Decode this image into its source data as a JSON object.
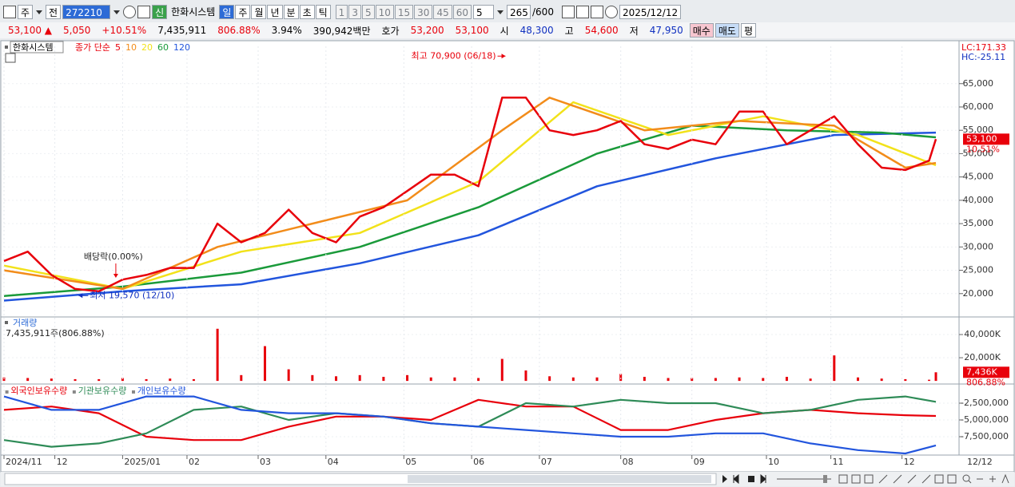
{
  "toolbar": {
    "period": "주",
    "mode": "전",
    "code": "272210",
    "new_badge": "신",
    "name": "한화시스템",
    "intervals": [
      "일",
      "주",
      "월",
      "년",
      "분",
      "초",
      "틱"
    ],
    "minutes": [
      "1",
      "3",
      "5",
      "10",
      "15",
      "30",
      "45",
      "60"
    ],
    "unit": "5",
    "count": "265",
    "max": "/600",
    "date": "2025/12/12"
  },
  "quote": {
    "cells": [
      {
        "text": "53,100 ▲",
        "color": "#e8000b"
      },
      {
        "text": "5,050",
        "color": "#e8000b"
      },
      {
        "text": "+10.51%",
        "color": "#e8000b"
      },
      {
        "text": "7,435,911",
        "color": "#000000"
      },
      {
        "text": "806.88%",
        "color": "#e8000b"
      },
      {
        "text": "3.94%",
        "color": "#000000"
      },
      {
        "text": "390,942백만",
        "color": "#000000"
      },
      {
        "text": "호가",
        "color": "#000000"
      },
      {
        "text": "53,200",
        "color": "#e8000b"
      },
      {
        "text": "53,100",
        "color": "#e8000b"
      },
      {
        "text": "시",
        "color": "#000000"
      },
      {
        "text": "48,300",
        "color": "#1030c0"
      },
      {
        "text": "고",
        "color": "#000000"
      },
      {
        "text": "54,600",
        "color": "#e8000b"
      },
      {
        "text": "저",
        "color": "#000000"
      },
      {
        "text": "47,950",
        "color": "#1030c0"
      }
    ],
    "buttons": [
      {
        "text": "매수",
        "color": "#f7c6d0"
      },
      {
        "text": "매도",
        "color": "#c6dcf7"
      },
      {
        "text": "평",
        "color": "#ffffff"
      }
    ]
  },
  "chart_data": [
    {
      "type": "line",
      "title": "한화시스템",
      "legend_prefix": "종가 단순",
      "corner_labels": [
        {
          "text": "LC:171.33",
          "color": "#e8000b"
        },
        {
          "text": "HC:-25.11",
          "color": "#1030c0"
        }
      ],
      "xlim": [
        0,
        275
      ],
      "ylim": [
        15000,
        73000
      ],
      "yticks": [
        {
          "value": 20000,
          "label": "20,000"
        },
        {
          "value": 25000,
          "label": "25,000"
        },
        {
          "value": 30000,
          "label": "30,000"
        },
        {
          "value": 35000,
          "label": "35,000"
        },
        {
          "value": 40000,
          "label": "40,000"
        },
        {
          "value": 45000,
          "label": "45,000"
        },
        {
          "value": 50000,
          "label": "50,000"
        },
        {
          "value": 55000,
          "label": "55,000"
        },
        {
          "value": 60000,
          "label": "60,000"
        },
        {
          "value": 65000,
          "label": "65,000"
        }
      ],
      "series": [
        {
          "name": "120",
          "color": "#2255dd",
          "x": [
            0,
            35,
            70,
            105,
            140,
            175,
            210,
            245,
            275
          ],
          "values": [
            18500,
            20500,
            22000,
            26500,
            32500,
            43000,
            49000,
            54000,
            54500
          ]
        },
        {
          "name": "60",
          "color": "#1a9a3a",
          "x": [
            0,
            35,
            70,
            105,
            140,
            175,
            203,
            231,
            259,
            275
          ],
          "values": [
            19500,
            21500,
            24500,
            30000,
            38500,
            50000,
            56000,
            55000,
            54500,
            53500
          ]
        },
        {
          "name": "20",
          "color": "#f2e21a",
          "x": [
            0,
            35,
            70,
            105,
            140,
            168,
            196,
            224,
            252,
            275
          ],
          "values": [
            26000,
            21000,
            29000,
            33000,
            44000,
            61000,
            54000,
            58000,
            54000,
            47500
          ]
        },
        {
          "name": "10",
          "color": "#f28c1a",
          "x": [
            0,
            35,
            63,
            91,
            119,
            147,
            161,
            189,
            217,
            245,
            266,
            275
          ],
          "values": [
            25000,
            21000,
            30000,
            35000,
            40000,
            55000,
            62000,
            55000,
            57000,
            56000,
            47000,
            48000
          ]
        },
        {
          "name": "5",
          "color": "#e8000b",
          "x": [
            0,
            7,
            14,
            21,
            28,
            35,
            42,
            49,
            56,
            63,
            70,
            77,
            84,
            91,
            98,
            105,
            112,
            119,
            126,
            133,
            140,
            147,
            154,
            161,
            168,
            175,
            182,
            189,
            196,
            203,
            210,
            217,
            224,
            231,
            238,
            245,
            252,
            259,
            266,
            273,
            275
          ],
          "values": [
            27000,
            29000,
            24000,
            21000,
            20500,
            23000,
            24000,
            25500,
            25500,
            35000,
            31000,
            33000,
            38000,
            33000,
            31000,
            36500,
            38500,
            42000,
            45500,
            45500,
            43000,
            62000,
            62000,
            55000,
            54000,
            55000,
            57000,
            52000,
            51000,
            53000,
            52000,
            59000,
            59000,
            52000,
            55000,
            58000,
            52000,
            47000,
            46500,
            48500,
            53100
          ]
        }
      ],
      "last": {
        "value": 53100,
        "label": "53,100"
      },
      "last_change": "10.51%",
      "annotations": [
        {
          "text": "최고 70,900 (06/18)",
          "x": 148,
          "value": 70900
        },
        {
          "text": "배당락(0.00%)",
          "x": 33
        },
        {
          "text": "최저 19,570 (12/10)",
          "x": 22,
          "value": 19570
        }
      ]
    },
    {
      "type": "bar",
      "title": "거래량",
      "subtitle": "7,435,911주(806.88%)",
      "color": "#e8000b",
      "xlim": [
        0,
        275
      ],
      "ylim": [
        -2000,
        54500
      ],
      "yticks": [
        {
          "value": 20000,
          "label": "20,000K"
        },
        {
          "value": 40000,
          "label": "40,000K"
        }
      ],
      "x": [
        0,
        7,
        14,
        21,
        28,
        35,
        42,
        49,
        56,
        63,
        70,
        77,
        84,
        91,
        98,
        105,
        112,
        119,
        126,
        133,
        140,
        147,
        154,
        161,
        168,
        175,
        182,
        189,
        196,
        203,
        210,
        217,
        224,
        231,
        238,
        245,
        252,
        259,
        266,
        273,
        275
      ],
      "values": [
        3000,
        2500,
        2000,
        1500,
        1500,
        2500,
        1500,
        2000,
        1500,
        45000,
        5000,
        30000,
        10000,
        5000,
        4000,
        5000,
        3500,
        5000,
        3000,
        3000,
        2500,
        19000,
        9000,
        4000,
        3000,
        3000,
        6000,
        3500,
        2500,
        2500,
        2500,
        3000,
        2500,
        3500,
        2000,
        22000,
        3000,
        2000,
        1500,
        1000,
        7436
      ],
      "last": {
        "value": 7436,
        "label": "7,436K"
      },
      "last_change": "806.88%"
    },
    {
      "type": "line",
      "xlim": [
        0,
        275
      ],
      "ylim": [
        -10240000,
        0
      ],
      "yticks": [
        {
          "value": -2500000,
          "label": "-2,500,000"
        },
        {
          "value": -5000000,
          "label": "-5,000,000"
        },
        {
          "value": -7500000,
          "label": "-7,500,000"
        }
      ],
      "xticks": [
        {
          "value": 0,
          "label": "2024/11"
        },
        {
          "value": 15,
          "label": "12"
        },
        {
          "value": 35,
          "label": "2025/01"
        },
        {
          "value": 54,
          "label": "02"
        },
        {
          "value": 75,
          "label": "03"
        },
        {
          "value": 95,
          "label": "04"
        },
        {
          "value": 118,
          "label": "05"
        },
        {
          "value": 138,
          "label": "06"
        },
        {
          "value": 158,
          "label": "07"
        },
        {
          "value": 182,
          "label": "08"
        },
        {
          "value": 203,
          "label": "09"
        },
        {
          "value": 225,
          "label": "10"
        },
        {
          "value": 244,
          "label": "11"
        },
        {
          "value": 265,
          "label": "12"
        }
      ],
      "x_cursor_label": "12/12",
      "series": [
        {
          "name": "외국인보유수량",
          "color": "#e8000b",
          "x": [
            0,
            14,
            28,
            42,
            56,
            70,
            84,
            98,
            112,
            126,
            140,
            154,
            168,
            182,
            196,
            210,
            224,
            238,
            252,
            266,
            275
          ],
          "values": [
            -3500000,
            -3000000,
            -4000000,
            -7500000,
            -8000000,
            -8000000,
            -6000000,
            -4500000,
            -4500000,
            -5000000,
            -2000000,
            -3000000,
            -3000000,
            -6500000,
            -6500000,
            -5000000,
            -4000000,
            -3500000,
            -4000000,
            -4300000,
            -4400000
          ]
        },
        {
          "name": "기관보유수량",
          "color": "#2e8b57",
          "x": [
            0,
            14,
            28,
            42,
            56,
            70,
            84,
            98,
            112,
            126,
            140,
            154,
            168,
            182,
            196,
            210,
            224,
            238,
            252,
            266,
            275
          ],
          "values": [
            -8000000,
            -9000000,
            -8500000,
            -7000000,
            -3500000,
            -3000000,
            -5000000,
            -4000000,
            -4500000,
            -5500000,
            -6000000,
            -2500000,
            -3000000,
            -2000000,
            -2500000,
            -2500000,
            -4000000,
            -3500000,
            -2000000,
            -1500000,
            -2300000
          ]
        },
        {
          "name": "개인보유수량",
          "color": "#2255dd",
          "x": [
            0,
            14,
            28,
            42,
            56,
            70,
            84,
            98,
            112,
            126,
            140,
            154,
            168,
            182,
            196,
            210,
            224,
            238,
            252,
            266,
            275
          ],
          "values": [
            -1500000,
            -3500000,
            -3500000,
            -1500000,
            -1500000,
            -3500000,
            -4000000,
            -4000000,
            -4500000,
            -5500000,
            -6000000,
            -6500000,
            -7000000,
            -7500000,
            -7500000,
            -7000000,
            -7000000,
            -8500000,
            -9500000,
            -10000000,
            -8800000
          ]
        }
      ]
    }
  ]
}
